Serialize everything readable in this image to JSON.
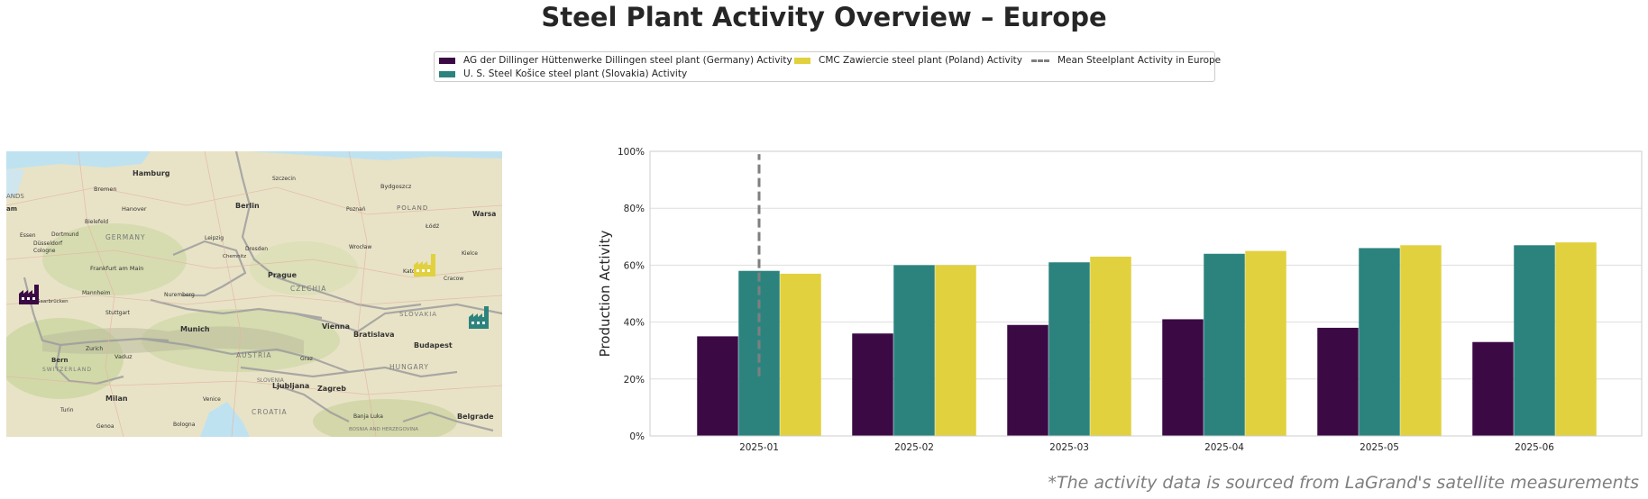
{
  "title": "Steel Plant Activity Overview – Europe",
  "footnote": "*The activity data is sourced from LaGrand's satellite measurements",
  "legend": {
    "items": [
      {
        "label": "AG der Dillinger Hüttenwerke Dillingen steel plant (Germany) Activity",
        "color": "#3b0a45"
      },
      {
        "label": "CMC Zawiercie steel plant (Poland) Activity",
        "color": "#e1d13f"
      },
      {
        "label": "Mean Steelplant Activity in Europe",
        "color": "#7f7f7f"
      },
      {
        "label": "U. S. Steel Košice steel plant (Slovakia) Activity",
        "color": "#2c837e"
      }
    ]
  },
  "map": {
    "labels": [
      "Hamburg",
      "Szczecin",
      "Bydgoszcz",
      "Bremen",
      "Hanover",
      "Berlin",
      "Poznań",
      "POLAND",
      "Warsa",
      "ANDS",
      "am",
      "Bielefeld",
      "Essen",
      "Dortmund",
      "Düsseldorf",
      "Cologne",
      "GERMANY",
      "Leipzig",
      "Dresden",
      "Chemnitz",
      "Łódź",
      "Wrocław",
      "Kielce",
      "Frankfurt am Main",
      "Katowice",
      "Cracow",
      "Mannheim",
      "Nuremberg",
      "Prague",
      "CZECHIA",
      "Saarbrücken",
      "Stuttgart",
      "SLOVAKIA",
      "Munich",
      "Vienna",
      "Bratislava",
      "Budapest",
      "Zurich",
      "Vaduz",
      "Bern",
      "SWITZERLAND",
      "AUSTRIA",
      "Graz",
      "HUNGARY",
      "SLOVENIA",
      "Ljubljana",
      "Zagreb",
      "Milan",
      "Venice",
      "Turin",
      "CROATIA",
      "Banja Luka",
      "Genoa",
      "Bologna",
      "BOSNIA AND HERZEGOVINA",
      "Belgrade"
    ],
    "plant_icons": [
      {
        "name": "dillingen-plant",
        "color": "#3b0a45"
      },
      {
        "name": "zawiercie-plant",
        "color": "#e1d13f"
      },
      {
        "name": "kosice-plant",
        "color": "#2c837e"
      }
    ]
  },
  "chart_data": {
    "type": "bar",
    "categories": [
      "2025-01",
      "2025-02",
      "2025-03",
      "2025-04",
      "2025-05",
      "2025-06"
    ],
    "series": [
      {
        "name": "AG der Dillinger Hüttenwerke Dillingen steel plant (Germany) Activity",
        "color": "#3b0a45",
        "values": [
          35,
          36,
          39,
          41,
          38,
          33
        ]
      },
      {
        "name": "U. S. Steel Košice steel plant (Slovakia) Activity",
        "color": "#2c837e",
        "values": [
          58,
          60,
          61,
          64,
          66,
          67
        ]
      },
      {
        "name": "CMC Zawiercie steel plant (Poland) Activity",
        "color": "#e1d13f",
        "values": [
          57,
          60,
          63,
          65,
          67,
          68
        ]
      }
    ],
    "mean_line": {
      "name": "Mean Steelplant Activity in Europe",
      "category": "2025-01",
      "range": [
        21,
        99
      ]
    },
    "ylabel": "Production Activity",
    "xlabel": "",
    "ylim": [
      0,
      100
    ],
    "yticks": [
      0,
      20,
      40,
      60,
      80,
      100
    ],
    "ytick_labels": [
      "0%",
      "20%",
      "40%",
      "60%",
      "80%",
      "100%"
    ],
    "grid": true
  }
}
